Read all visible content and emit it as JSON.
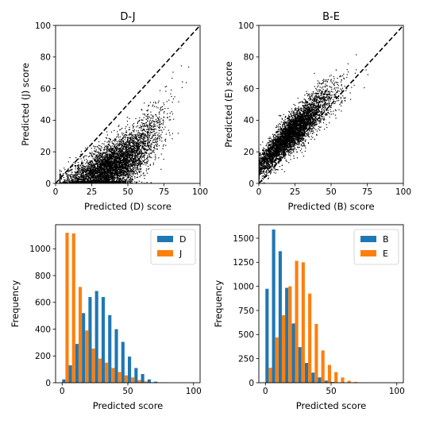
{
  "chart_data": [
    {
      "type": "scatter",
      "title": "D-J",
      "xlabel": "Predicted (D) score",
      "ylabel": "Predicted (J) score",
      "xlim": [
        0,
        100
      ],
      "ylim": [
        0,
        100
      ],
      "xticks": [
        "0",
        "25",
        "50",
        "75",
        "100"
      ],
      "yticks": [
        "0",
        "20",
        "40",
        "60",
        "80",
        "100"
      ],
      "reference_line": {
        "style": "dashed",
        "color": "#000000",
        "from": [
          0,
          0
        ],
        "to": [
          100,
          100
        ]
      },
      "point_color": "#000000",
      "cloud_core": [
        [
          10,
          2
        ],
        [
          20,
          4
        ],
        [
          30,
          7
        ],
        [
          40,
          11
        ],
        [
          50,
          16
        ],
        [
          60,
          23
        ],
        [
          70,
          33
        ],
        [
          80,
          47
        ],
        [
          90,
          62
        ]
      ],
      "grid": false
    },
    {
      "type": "scatter",
      "title": "B-E",
      "xlabel": "Predicted (B) score",
      "ylabel": "Predicted (E) score",
      "xlim": [
        0,
        100
      ],
      "ylim": [
        0,
        100
      ],
      "xticks": [
        "0",
        "25",
        "50",
        "75",
        "100"
      ],
      "yticks": [
        "0",
        "20",
        "40",
        "60",
        "80",
        "100"
      ],
      "reference_line": {
        "style": "dashed",
        "color": "#000000",
        "from": [
          0,
          0
        ],
        "to": [
          100,
          100
        ]
      },
      "point_color": "#000000",
      "cloud_core": [
        [
          0,
          10
        ],
        [
          10,
          20
        ],
        [
          20,
          30
        ],
        [
          30,
          38
        ],
        [
          40,
          47
        ],
        [
          50,
          55
        ],
        [
          60,
          62
        ],
        [
          70,
          70
        ],
        [
          80,
          78
        ]
      ],
      "grid": false
    },
    {
      "type": "bar",
      "xlabel": "Predicted score",
      "ylabel": "Frequency",
      "xlim": [
        -5,
        105
      ],
      "ylim": [
        0,
        1180
      ],
      "xticks": [
        "0",
        "50",
        "100"
      ],
      "yticks": [
        "0",
        "200",
        "400",
        "600",
        "800",
        "1000"
      ],
      "bin_centers": [
        2.5,
        7.5,
        12.5,
        17.5,
        22.5,
        27.5,
        32.5,
        37.5,
        42.5,
        47.5,
        52.5,
        57.5,
        62.5,
        67.5,
        72.5,
        77.5,
        82.5,
        87.5,
        92.5,
        97.5
      ],
      "bin_width": 5,
      "legend": "top-right",
      "grid": false,
      "series": [
        {
          "name": "D",
          "color": "#1f77b4",
          "values": [
            25,
            130,
            290,
            520,
            640,
            685,
            640,
            505,
            400,
            305,
            195,
            110,
            65,
            25,
            8,
            3,
            0,
            0,
            0,
            0
          ]
        },
        {
          "name": "J",
          "color": "#ff7f0e",
          "values": [
            1120,
            1115,
            715,
            390,
            255,
            180,
            150,
            110,
            80,
            55,
            40,
            20,
            10,
            4,
            2,
            0,
            0,
            0,
            0,
            0
          ]
        }
      ]
    },
    {
      "type": "bar",
      "xlabel": "Predicted score",
      "ylabel": "Frequency",
      "xlim": [
        -5,
        105
      ],
      "ylim": [
        0,
        1640
      ],
      "xticks": [
        "0",
        "50",
        "100"
      ],
      "yticks": [
        "0",
        "250",
        "500",
        "750",
        "1000",
        "1250",
        "1500"
      ],
      "bin_centers": [
        2.5,
        7.5,
        12.5,
        17.5,
        22.5,
        27.5,
        32.5,
        37.5,
        42.5,
        47.5,
        52.5,
        57.5,
        62.5,
        67.5,
        72.5,
        77.5,
        82.5,
        87.5,
        92.5,
        97.5
      ],
      "bin_width": 5,
      "legend": "top-right",
      "grid": false,
      "series": [
        {
          "name": "B",
          "color": "#1f77b4",
          "values": [
            975,
            1590,
            1365,
            985,
            615,
            370,
            205,
            105,
            55,
            22,
            8,
            3,
            0,
            0,
            0,
            0,
            0,
            0,
            0,
            0
          ]
        },
        {
          "name": "E",
          "color": "#ff7f0e",
          "values": [
            155,
            470,
            700,
            1000,
            1265,
            1250,
            925,
            610,
            335,
            185,
            110,
            55,
            20,
            8,
            3,
            0,
            0,
            0,
            0,
            0
          ]
        }
      ]
    }
  ]
}
